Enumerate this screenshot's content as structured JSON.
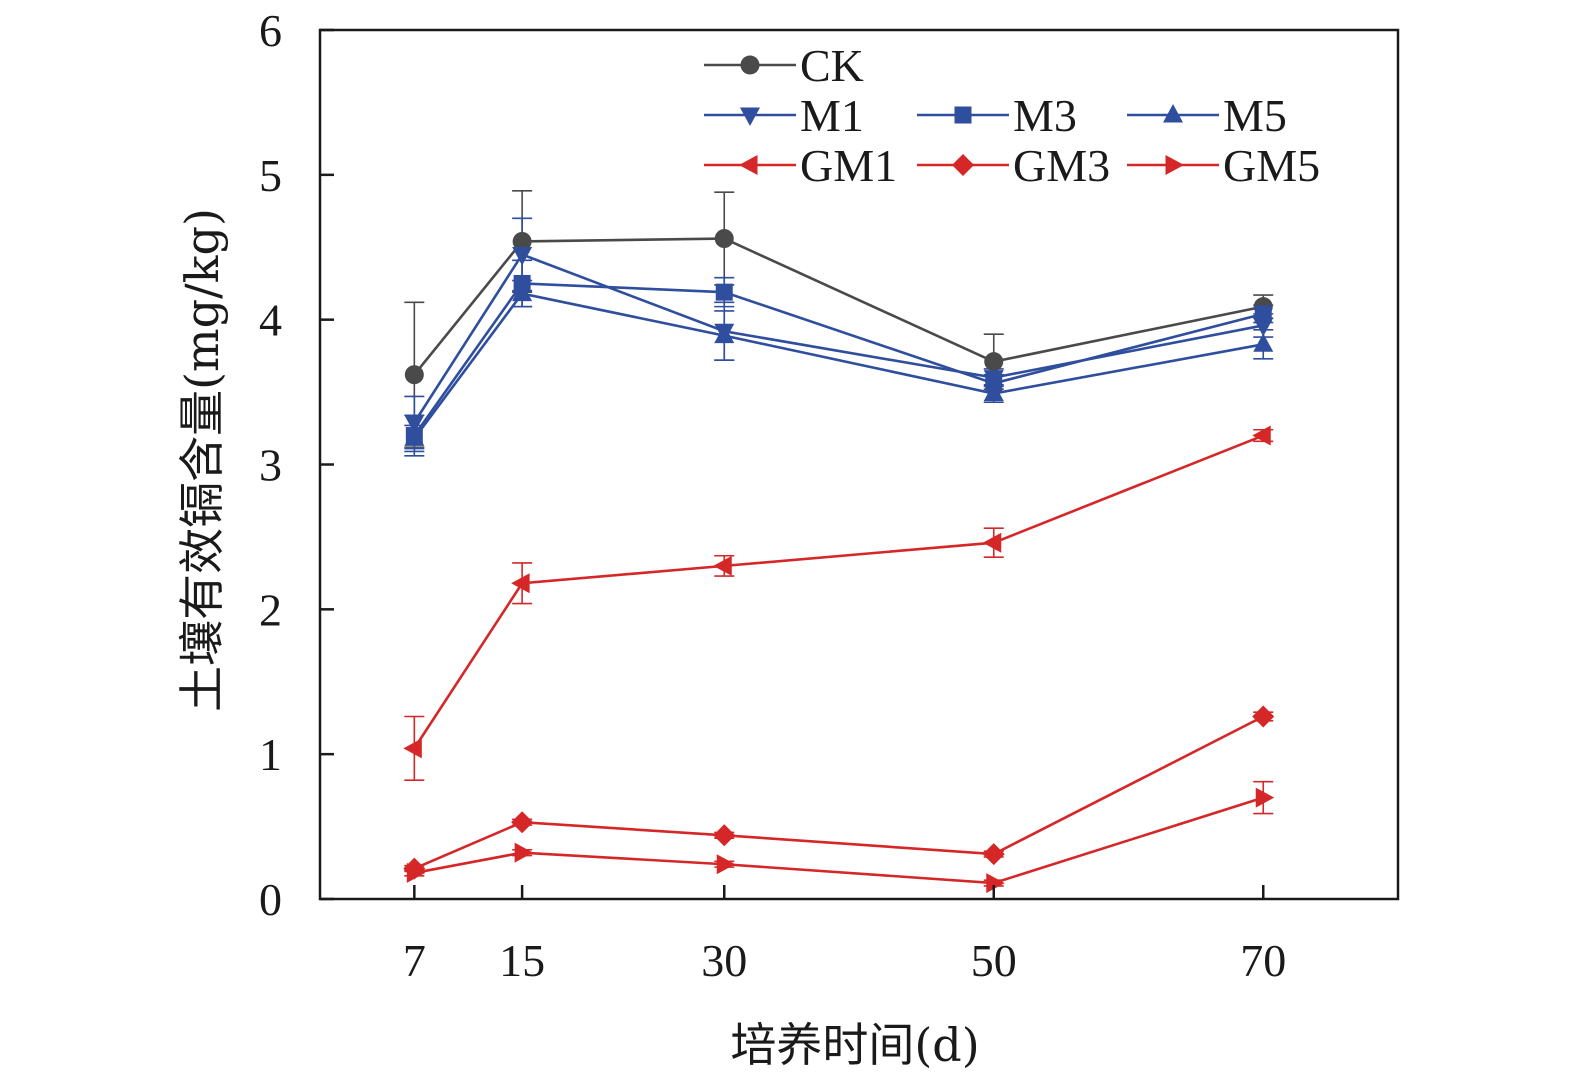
{
  "chart_data": {
    "type": "line",
    "title": "",
    "xlabel": "培养时间(d)",
    "ylabel": "土壤有效镉含量(mg/kg)",
    "x": [
      7,
      15,
      30,
      50,
      70
    ],
    "x_tick_labels": [
      "7",
      "15",
      "30",
      "50",
      "70"
    ],
    "xlim": [
      0,
      80
    ],
    "ylim": [
      0,
      6
    ],
    "y_ticks": [
      0,
      1,
      2,
      3,
      4,
      5,
      6
    ],
    "y_tick_labels": [
      "0",
      "1",
      "2",
      "3",
      "4",
      "5",
      "6"
    ],
    "grid": false,
    "legend_position": "top-center",
    "series": [
      {
        "name": "CK",
        "values": [
          3.62,
          4.54,
          4.56,
          3.71,
          4.09
        ],
        "errors": [
          0.5,
          0.35,
          0.32,
          0.19,
          0.08
        ],
        "color": "#4a4a4a",
        "marker": "circle"
      },
      {
        "name": "M1",
        "values": [
          3.29,
          4.45,
          3.92,
          3.6,
          3.96
        ],
        "errors": [
          0.18,
          0.25,
          0.2,
          0.06,
          0.08
        ],
        "color": "#2f4e9e",
        "marker": "triangle-down"
      },
      {
        "name": "M3",
        "values": [
          3.2,
          4.25,
          4.19,
          3.56,
          4.04
        ],
        "errors": [
          0.14,
          0.16,
          0.1,
          0.06,
          0.06
        ],
        "color": "#2f4e9e",
        "marker": "square"
      },
      {
        "name": "M5",
        "values": [
          3.18,
          4.18,
          3.89,
          3.49,
          3.83
        ],
        "errors": [
          0.09,
          0.09,
          0.17,
          0.06,
          0.1
        ],
        "color": "#2f4e9e",
        "marker": "triangle-up"
      },
      {
        "name": "GM1",
        "values": [
          1.04,
          2.18,
          2.3,
          2.46,
          3.2
        ],
        "errors": [
          0.22,
          0.14,
          0.07,
          0.1,
          0.04
        ],
        "color": "#d62728",
        "marker": "triangle-left"
      },
      {
        "name": "GM3",
        "values": [
          0.21,
          0.53,
          0.44,
          0.31,
          1.26
        ],
        "errors": [
          0.02,
          0.02,
          0.02,
          0.02,
          0.03
        ],
        "color": "#d62728",
        "marker": "diamond"
      },
      {
        "name": "GM5",
        "values": [
          0.18,
          0.32,
          0.24,
          0.11,
          0.7
        ],
        "errors": [
          0.02,
          0.02,
          0.02,
          0.02,
          0.11
        ],
        "color": "#d62728",
        "marker": "triangle-right"
      }
    ]
  }
}
